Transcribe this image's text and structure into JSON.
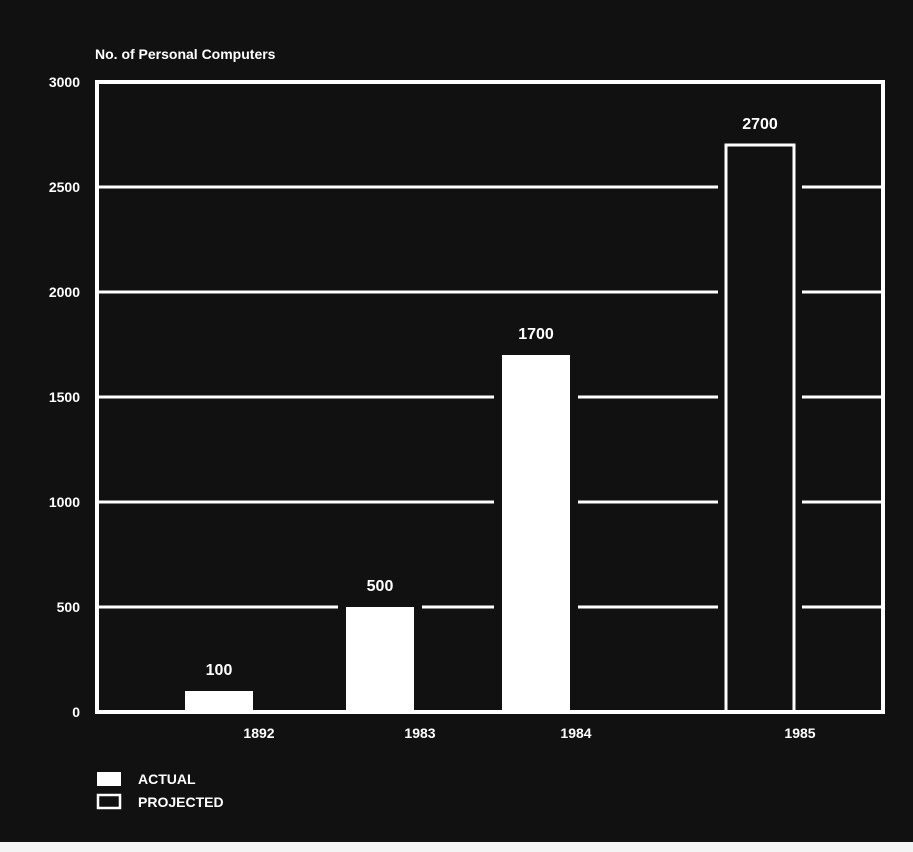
{
  "chart_data": {
    "type": "bar",
    "ylabel": "No. of Personal Computers",
    "categories": [
      "1892",
      "1983",
      "1984",
      "1985"
    ],
    "values": [
      100,
      500,
      1700,
      2700
    ],
    "data_labels": [
      "100",
      "500",
      "1700",
      "2700"
    ],
    "bar_style": [
      "actual",
      "actual",
      "actual",
      "projected"
    ],
    "ylim": [
      0,
      3000
    ],
    "yticks": [
      "0",
      "500",
      "1000",
      "1500",
      "2000",
      "2500",
      "3000"
    ],
    "grid": true,
    "legend": {
      "placement": "bottom-left",
      "entries": [
        {
          "key": "actual",
          "label": "ACTUAL",
          "style": "filled"
        },
        {
          "key": "projected",
          "label": "PROJECTED",
          "style": "outline"
        }
      ]
    },
    "colors": {
      "background": "#111111",
      "foreground": "#ffffff",
      "page": "#f4f4f4"
    }
  }
}
